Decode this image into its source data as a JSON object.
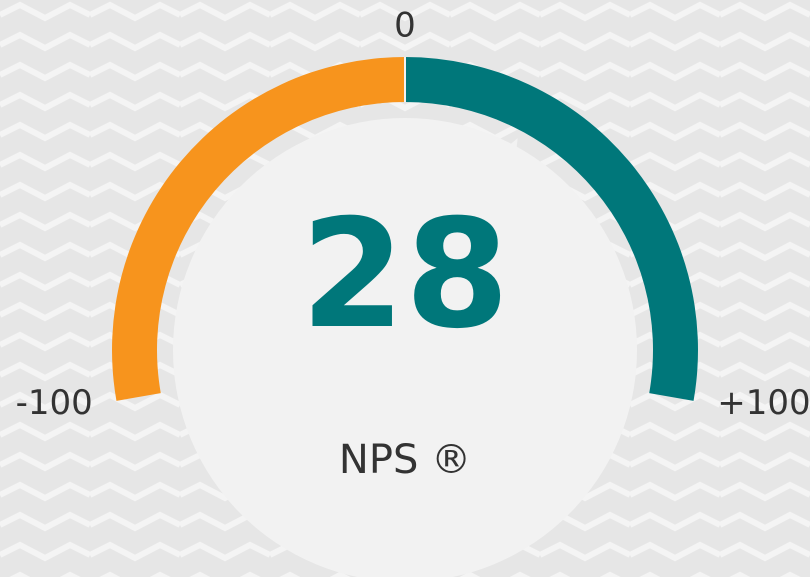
{
  "chart_data": {
    "type": "gauge",
    "value": 28,
    "color": "#00777a",
    "label": "NPS ®",
    "range": [
      -100,
      100
    ],
    "ticks": [
      -100,
      0,
      {
        "value": 100,
        "label": "+100"
      }
    ],
    "bands": [
      {
        "from": -100,
        "to": 0,
        "color": "#f7941d"
      },
      {
        "from": 0,
        "to": 100,
        "color": "#00777a"
      }
    ]
  }
}
